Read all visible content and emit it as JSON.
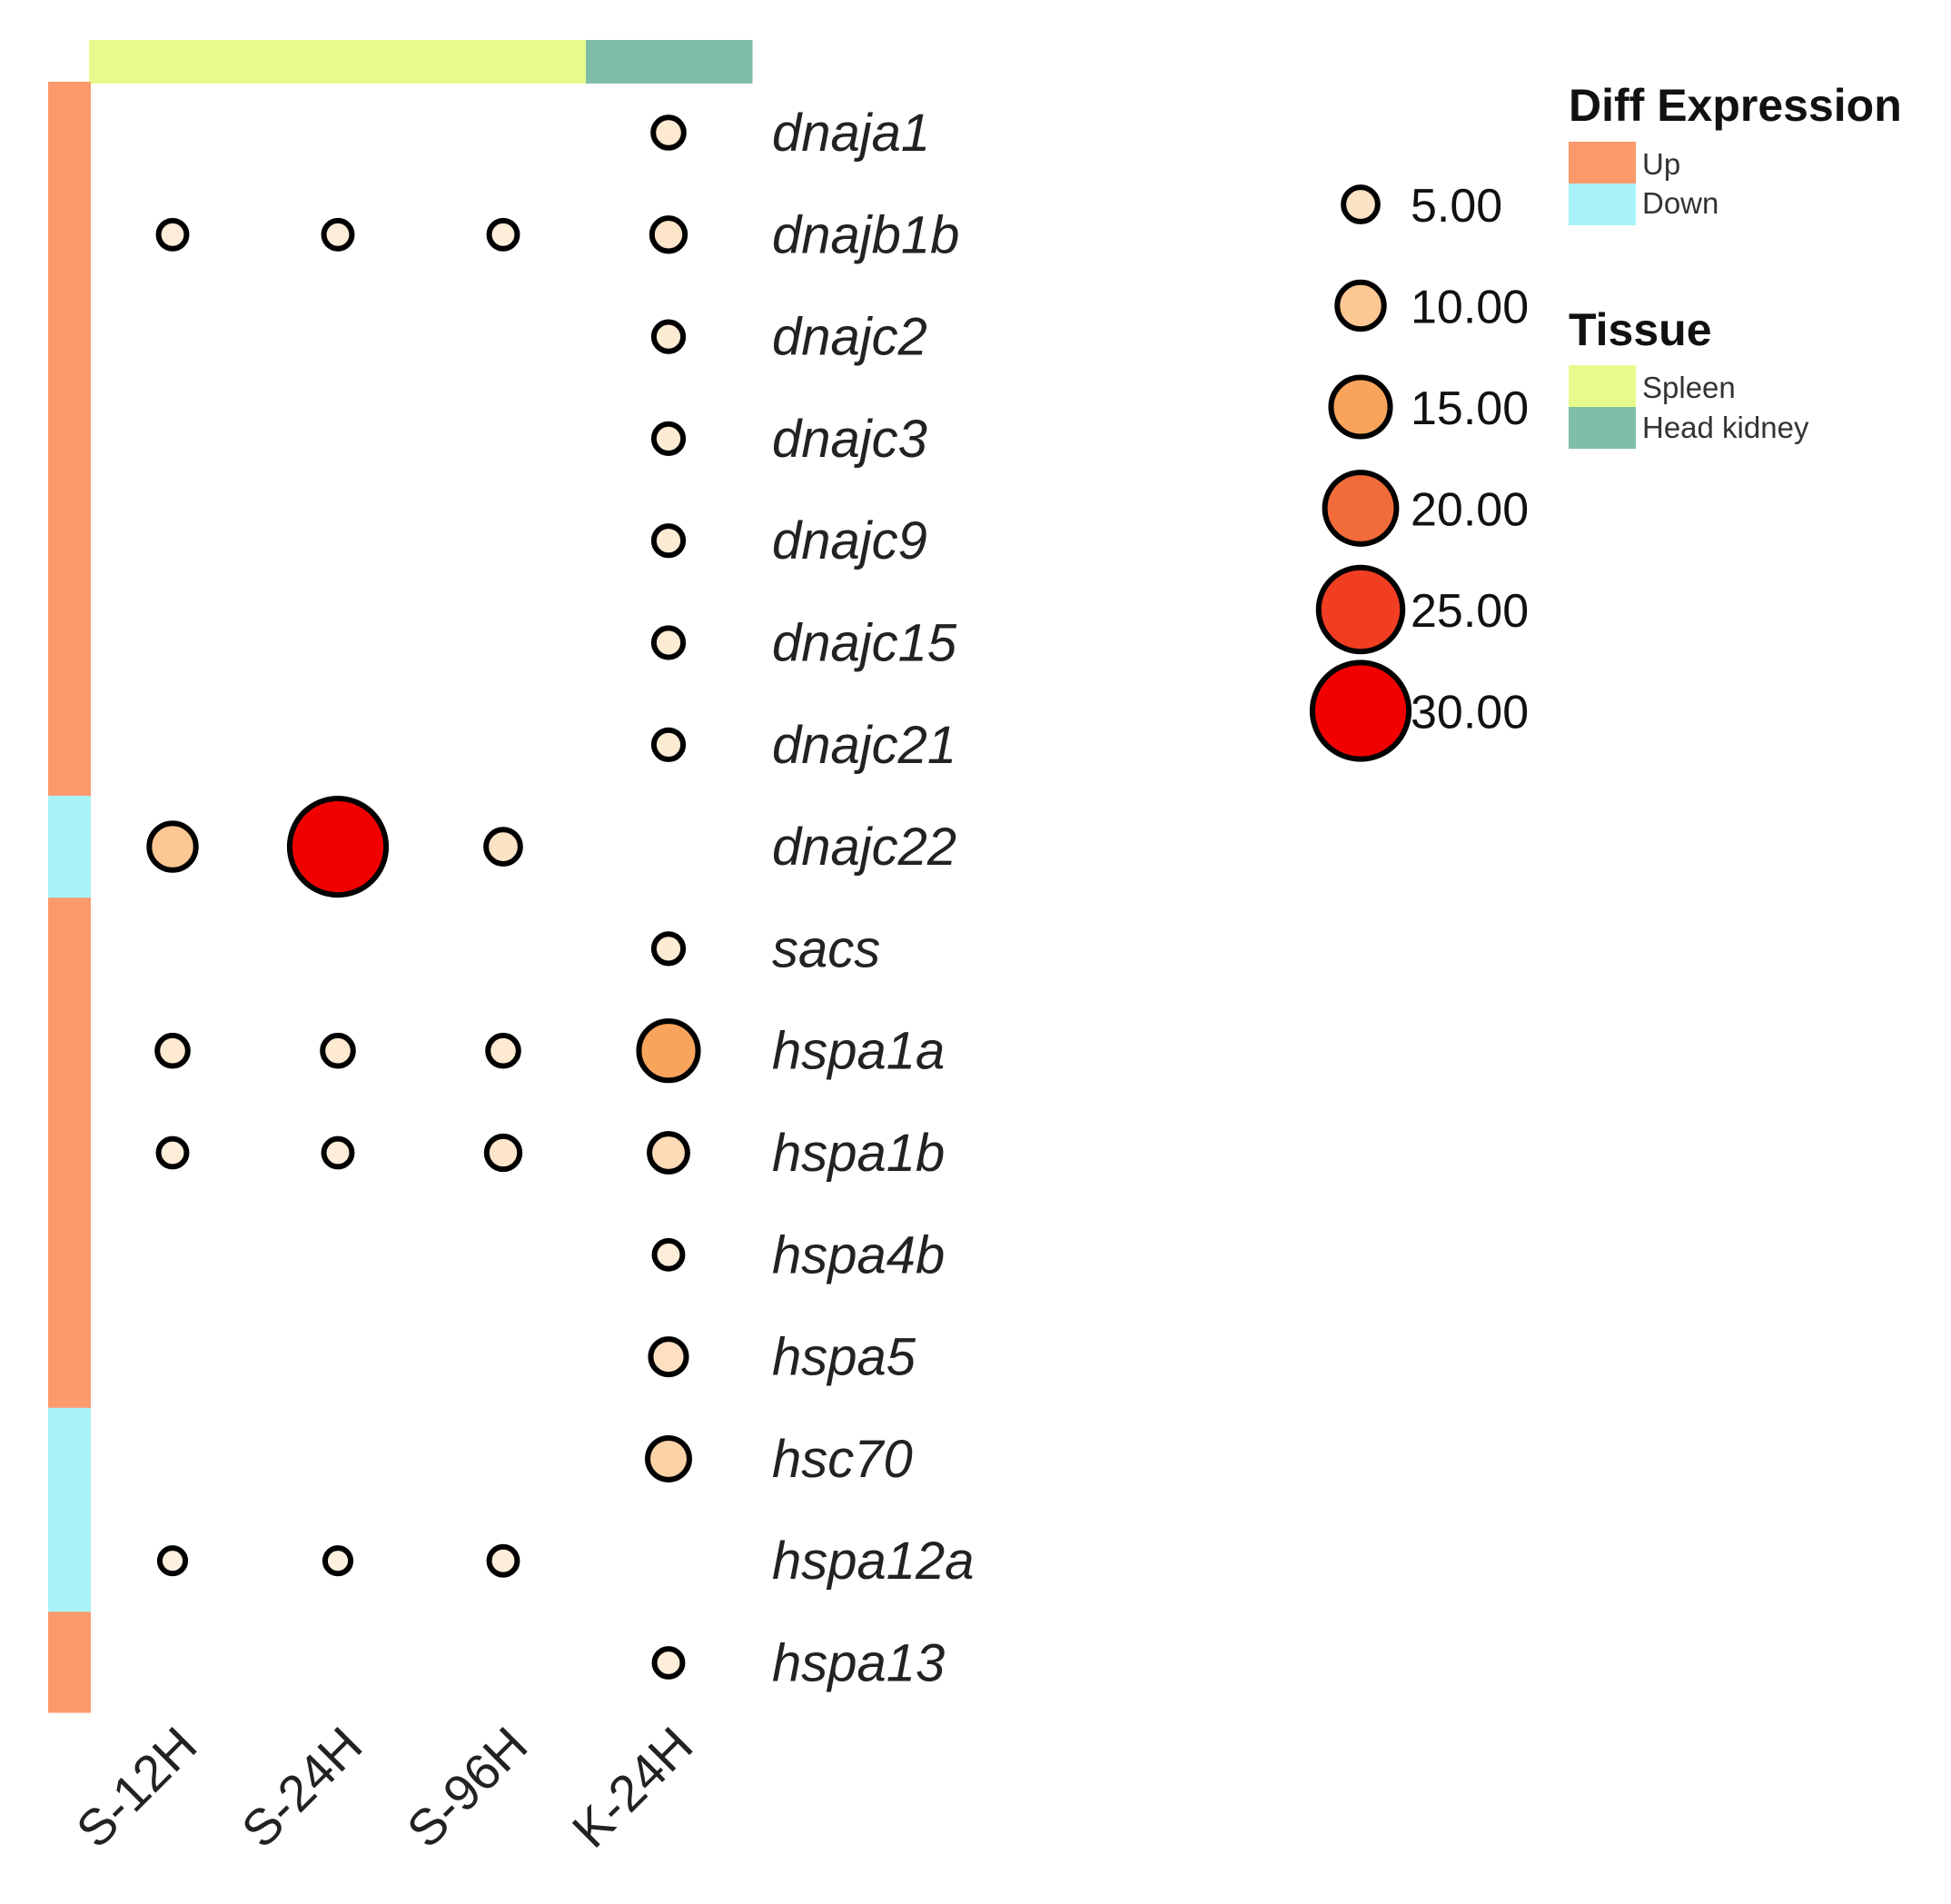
{
  "chart_data": {
    "type": "scatter",
    "subtype": "dot-matrix",
    "columns": [
      "S-12H",
      "S-24H",
      "S-96H",
      "K-24H"
    ],
    "column_tissue": [
      "Spleen",
      "Spleen",
      "Spleen",
      "Head kidney"
    ],
    "genes": [
      "dnaja1",
      "dnajb1b",
      "dnajc2",
      "dnajc3",
      "dnajc9",
      "dnajc15",
      "dnajc21",
      "dnajc22",
      "sacs",
      "hspa1a",
      "hspa1b",
      "hspa4b",
      "hspa5",
      "hsc70",
      "hspa12a",
      "hspa13"
    ],
    "gene_diff_expression": [
      "Up",
      "Up",
      "Up",
      "Up",
      "Up",
      "Up",
      "Up",
      "Down",
      "Up",
      "Up",
      "Up",
      "Up",
      "Up",
      "Down",
      "Down",
      "Up"
    ],
    "values": [
      [
        null,
        null,
        null,
        3.5
      ],
      [
        2.5,
        2.5,
        2.5,
        4.5
      ],
      [
        null,
        null,
        null,
        3.0
      ],
      [
        null,
        null,
        null,
        3.0
      ],
      [
        null,
        null,
        null,
        3.0
      ],
      [
        null,
        null,
        null,
        3.0
      ],
      [
        null,
        null,
        null,
        3.0
      ],
      [
        10.0,
        30.0,
        5.0,
        null
      ],
      [
        null,
        null,
        null,
        3.0
      ],
      [
        3.5,
        3.5,
        3.5,
        15.0
      ],
      [
        2.5,
        2.5,
        4.5,
        6.5
      ],
      [
        null,
        null,
        null,
        2.5
      ],
      [
        null,
        null,
        null,
        5.5
      ],
      [
        null,
        null,
        null,
        8.0
      ],
      [
        1.5,
        1.5,
        2.5,
        null
      ],
      [
        null,
        null,
        null,
        2.5
      ]
    ],
    "size_legend": {
      "labels": [
        "5.00",
        "10.00",
        "15.00",
        "20.00",
        "25.00",
        "30.00"
      ],
      "values": [
        5,
        10,
        15,
        20,
        25,
        30
      ],
      "colors": [
        "#fde3c6",
        "#fcc793",
        "#f9a45d",
        "#f26b3b",
        "#f13d22",
        "#f20000"
      ]
    },
    "diff_expression_legend": {
      "title": "Diff Expression",
      "items": [
        {
          "label": "Up",
          "color": "#fc9a6b"
        },
        {
          "label": "Down",
          "color": "#a8f3f7"
        }
      ]
    },
    "tissue_legend": {
      "title": "Tissue",
      "items": [
        {
          "label": "Spleen",
          "color": "#e6fb8c"
        },
        {
          "label": "Head kidney",
          "color": "#80bea8"
        }
      ]
    },
    "color_scale": {
      "min": 0,
      "max": 30,
      "low": "#fff6ea",
      "high": "#f20000"
    },
    "legend_position": "right"
  }
}
